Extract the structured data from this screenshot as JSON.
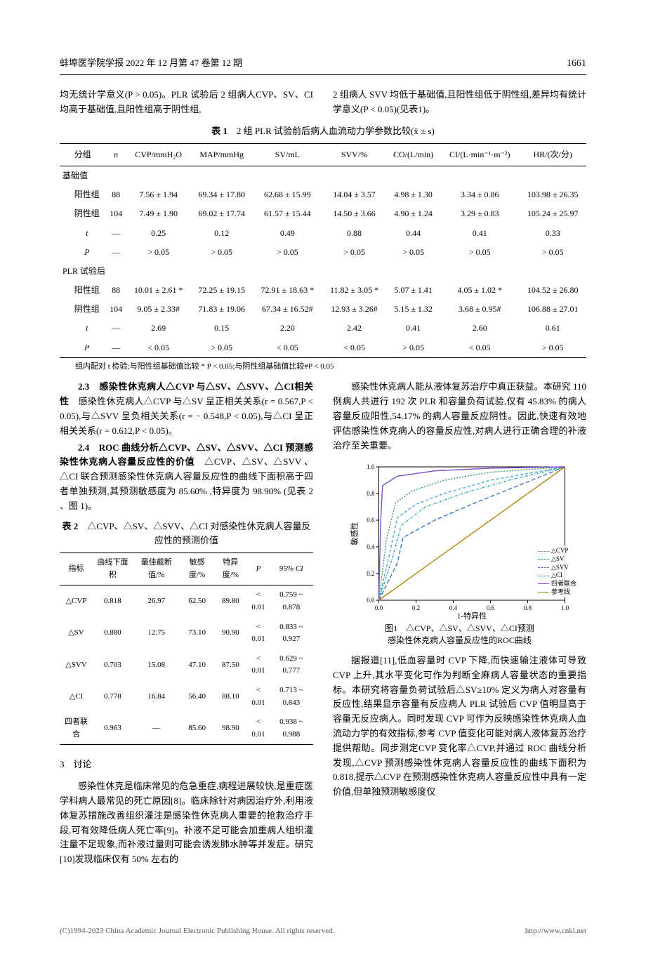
{
  "header": {
    "journal": "蚌埠医学院学报 2022 年 12 月第 47 卷第 12 期",
    "page": "1661"
  },
  "intro_left": "均无统计学意义(P > 0.05)。PLR 试验后 2 组病人CVP、SV、CI 均高于基础值,且阳性组高于阴性组,",
  "intro_right": "2 组病人 SVV 均低于基础值,且阳性组低于阴性组,差异均有统计学意义(P < 0.05)(见表1)。",
  "table1": {
    "title_prefix": "表 1",
    "title": "2 组 PLR 试验前后病人血流动力学参数比较(x̄ ± s)",
    "headers": [
      "分组",
      "n",
      "CVP/mmH₂O",
      "MAP/mmHg",
      "SV/mL",
      "SVV/%",
      "CO/(L/min)",
      "CI/(L·min⁻¹·m⁻²)",
      "HR/(次/分)"
    ],
    "sections": [
      {
        "label": "基础值",
        "rows": [
          [
            "阳性组",
            "88",
            "7.56 ± 1.94",
            "69.34 ± 17.80",
            "62.68 ± 15.99",
            "14.04 ± 3.57",
            "4.98 ± 1.30",
            "3.34 ± 0.86",
            "103.98 ± 26.35"
          ],
          [
            "阴性组",
            "104",
            "7.49 ± 1.90",
            "69.02 ± 17.74",
            "61.57 ± 15.44",
            "14.50 ± 3.66",
            "4.90 ± 1.24",
            "3.29 ± 0.83",
            "105.24 ± 25.97"
          ],
          [
            "t",
            "—",
            "0.25",
            "0.12",
            "0.49",
            "0.88",
            "0.44",
            "0.41",
            "0.33"
          ],
          [
            "P",
            "—",
            "> 0.05",
            "> 0.05",
            "> 0.05",
            "> 0.05",
            "> 0.05",
            "> 0.05",
            "> 0.05"
          ]
        ]
      },
      {
        "label": "PLR 试验后",
        "rows": [
          [
            "阳性组",
            "88",
            "10.01 ± 2.61 *",
            "72.25 ± 19.15",
            "72.91 ± 18.63 *",
            "11.82 ± 3.05 *",
            "5.07 ± 1.41",
            "4.05 ± 1.02 *",
            "104.52 ± 26.80"
          ],
          [
            "阴性组",
            "104",
            "9.05 ± 2.33#",
            "71.83 ± 19.06",
            "67.34 ± 16.52#",
            "12.93 ± 3.26#",
            "5.15 ± 1.32",
            "3.68 ± 0.95#",
            "106.88 ± 27.01"
          ],
          [
            "t",
            "—",
            "2.69",
            "0.15",
            "2.20",
            "2.42",
            "0.41",
            "2.60",
            "0.61"
          ],
          [
            "P",
            "—",
            "< 0.05",
            "> 0.05",
            "< 0.05",
            "< 0.05",
            "> 0.05",
            "< 0.05",
            "> 0.05"
          ]
        ]
      }
    ],
    "note": "组内配对 t 检验;与阳性组基础值比较 * P < 0.05;与阴性组基础值比较#P < 0.05"
  },
  "body_left": {
    "sec23_head": "2.3　感染性休克病人△CVP 与△SV、△SVV、△CI相关性",
    "sec23_text": "感染性休克病人△CVP 与△SV 呈正相关关系(r = 0.567,P < 0.05),与△SVV 呈负相关关系(r = − 0.548,P < 0.05),与△CI 呈正相关关系(r = 0.612,P < 0.05)。",
    "sec24_head": "2.4　ROC 曲线分析△CVP、△SV、△SVV、△CI 预测感染性休克病人容量反应性的价值",
    "sec24_text": "△CVP、△SV、△SVV 、△CI 联合预测感染性休克病人容量反应性的曲线下面积高于四者单独预测,其预测敏感度为 85.60% ,特异度为 98.90% (见表 2 、图 1)。"
  },
  "table2": {
    "title_prefix": "表 2",
    "title": "△CVP、△SV、△SVV、△CI 对感染性休克病人容量反应性的预测价值",
    "headers": [
      "指标",
      "曲线下面积",
      "最佳截断值/%",
      "敏感度/%",
      "特异度/%",
      "P",
      "95% CI"
    ],
    "rows": [
      [
        "△CVP",
        "0.818",
        "26.97",
        "62.50",
        "89.80",
        "< 0.01",
        "0.759 ~ 0.878"
      ],
      [
        "△SV",
        "0.880",
        "12.75",
        "73.10",
        "90.90",
        "< 0.01",
        "0.833 ~ 0.927"
      ],
      [
        "△SVV",
        "0.703",
        "15.08",
        "47.10",
        "87.50",
        "< 0.01",
        "0.629 ~ 0.777"
      ],
      [
        "△CI",
        "0.778",
        "16.84",
        "56.40",
        "88.10",
        "< 0.01",
        "0.713 ~ 0.843"
      ],
      [
        "四者联合",
        "0.963",
        "—",
        "85.60",
        "98.90",
        "< 0.01",
        "0.938 ~ 0.988"
      ]
    ]
  },
  "discussion": {
    "head": "3　讨论",
    "p1": "感染性休克是临床常见的危急重症,病程进展较快,是重症医学科病人最常见的死亡原因[8]。临床除针对病因治疗外,利用液体复苏措施改善组织灌注是感染性休克病人重要的抢救治疗手段,可有效降低病人死亡率[9]。补液不足可能会加重病人组织灌注量不足现象,而补液过量则可能会诱发肺水肿等并发症。研究[10]发现临床仅有 50% 左右的",
    "p_right1": "感染性休克病人能从液体复苏治疗中真正获益。本研究 110 例病人共进行 192 次 PLR 和容量负荷试验,仅有 45.83% 的病人容量反应阳性,54.17% 的病人容量反应阴性。因此,快速有效地评估感染性休克病人的容量反应性,对病人进行正确合理的补液治疗至关重要。",
    "p_right2": "据报道[11],低血容量时 CVP 下降,而快速输注液体可导致 CVP 上升,其水平变化可作为判断全麻病人容量状态的重要指标。本研究将容量负荷试验后△SV≥10% 定义为病人对容量有反应性,结果显示容量有反应病人 PLR 试验后 CVP 值明显高于容量无反应病人。同时发现 CVP 可作为反映感染性休克病人血流动力学的有效指标,参考 CVP 值变化可能对病人液体复苏治疗提供帮助。同步测定CVP 变化率△CVP,并通过 ROC 曲线分析发现,△CVP 预测感染性休克病人容量反应性的曲线下面积为 0.818,提示△CVP 在预测感染性休克病人容量反应性中具有一定价值,但单独预测敏感度仅"
  },
  "figure1": {
    "caption_line1": "图1　△CVP、△SV、△SVV、△CI预测",
    "caption_line2": "感染性休克病人容量反应性的ROC曲线",
    "xlabel": "1-特异性",
    "ylabel": "敏感性",
    "xlim": [
      0,
      1
    ],
    "ylim": [
      0,
      1
    ],
    "ticks": [
      "0.0",
      "0.2",
      "0.4",
      "0.6",
      "0.8",
      "1.0"
    ],
    "curves": [
      {
        "name": "△CVP",
        "color": "#4aa8d8",
        "dash": "4,3",
        "points": [
          [
            0,
            0
          ],
          [
            0.05,
            0.3
          ],
          [
            0.1,
            0.62
          ],
          [
            0.2,
            0.72
          ],
          [
            0.35,
            0.8
          ],
          [
            0.6,
            0.9
          ],
          [
            1,
            1
          ]
        ]
      },
      {
        "name": "△SV",
        "color": "#2e9e5b",
        "dash": "2,2",
        "points": [
          [
            0,
            0
          ],
          [
            0.04,
            0.45
          ],
          [
            0.09,
            0.73
          ],
          [
            0.18,
            0.82
          ],
          [
            0.35,
            0.9
          ],
          [
            0.6,
            0.96
          ],
          [
            1,
            1
          ]
        ]
      },
      {
        "name": "△SVV",
        "color": "#3a76c2",
        "dash": "6,3",
        "points": [
          [
            0,
            0
          ],
          [
            0.1,
            0.28
          ],
          [
            0.13,
            0.47
          ],
          [
            0.3,
            0.6
          ],
          [
            0.5,
            0.72
          ],
          [
            0.75,
            0.86
          ],
          [
            1,
            1
          ]
        ]
      },
      {
        "name": "△CI",
        "color": "#1aa6a6",
        "dash": "3,2,1,2",
        "points": [
          [
            0,
            0
          ],
          [
            0.08,
            0.35
          ],
          [
            0.12,
            0.56
          ],
          [
            0.25,
            0.7
          ],
          [
            0.45,
            0.8
          ],
          [
            0.7,
            0.9
          ],
          [
            1,
            1
          ]
        ]
      },
      {
        "name": "四者联合",
        "color": "#7d4fc9",
        "dash": "",
        "points": [
          [
            0,
            0
          ],
          [
            0.01,
            0.6
          ],
          [
            0.02,
            0.86
          ],
          [
            0.1,
            0.93
          ],
          [
            0.3,
            0.97
          ],
          [
            0.6,
            0.99
          ],
          [
            1,
            1
          ]
        ]
      },
      {
        "name": "参考线",
        "color": "#b8860b",
        "dash": "",
        "points": [
          [
            0,
            0
          ],
          [
            1,
            1
          ]
        ]
      }
    ],
    "legend_labels": [
      "△CVP",
      "△SV",
      "△SVV",
      "△CI",
      "四者联合",
      "参考线"
    ]
  },
  "footer": {
    "left": "(C)1994-2023 China Academic Journal Electronic Publishing House. All rights reserved.",
    "right": "http://www.cnki.net"
  }
}
